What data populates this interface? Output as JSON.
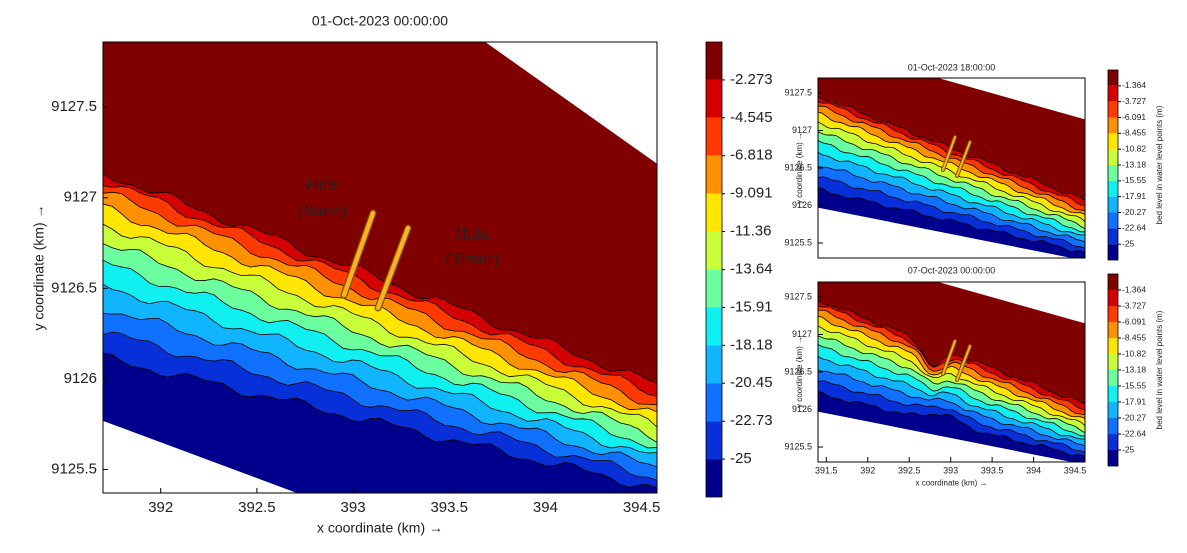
{
  "chart_data": [
    {
      "type": "contour",
      "title": "01-Oct-2023 00:00:00",
      "xlabel": "x coordinate (km) →",
      "ylabel": "y coordinate (km) →",
      "xlim": [
        391.7,
        394.58
      ],
      "ylim": [
        9125.37,
        9127.86
      ],
      "xticks": [
        392,
        392.5,
        393,
        393.5,
        394,
        394.5
      ],
      "yticks": [
        9125.5,
        9126,
        9126.5,
        9127,
        9127.5
      ],
      "annotations": [
        "Hilir",
        "(Barat)",
        "Hulu",
        "(Timur)"
      ],
      "colorbar": {
        "lim": [
          -27.27,
          0
        ],
        "ticks": [
          -2.273,
          -4.545,
          -6.818,
          -9.091,
          -11.36,
          -13.64,
          -15.91,
          -18.18,
          -20.45,
          -22.73,
          -25
        ],
        "colors": [
          "#800000",
          "#d40000",
          "#ff3a00",
          "#ff9000",
          "#ffe600",
          "#c8ff38",
          "#6cffa0",
          "#10f0f0",
          "#10b4ff",
          "#1070ff",
          "#0830d8",
          "#00008c"
        ]
      }
    },
    {
      "type": "contour",
      "title": "01-Oct-2023 18:00:00",
      "ylabel": "y coordinate (km) →",
      "xlim": [
        391.4,
        394.62
      ],
      "ylim": [
        9125.3,
        9127.7
      ],
      "yticks": [
        9125.5,
        9126,
        9126.5,
        9127,
        9127.5
      ],
      "colorbar": {
        "label": "bed level in water level points (m)",
        "lim": [
          -27.36,
          1
        ],
        "ticks": [
          -1.364,
          -3.727,
          -6.091,
          -8.455,
          -10.82,
          -13.18,
          -15.55,
          -17.91,
          -20.27,
          -22.64,
          -25
        ],
        "colors": [
          "#800000",
          "#d40000",
          "#ff3a00",
          "#ff9000",
          "#ffe600",
          "#c8ff38",
          "#6cffa0",
          "#10f0f0",
          "#10b4ff",
          "#1070ff",
          "#0830d8",
          "#00008c"
        ]
      }
    },
    {
      "type": "contour",
      "title": "07-Oct-2023 00:00:00",
      "xlabel": "x coordinate (km) →",
      "ylabel": "y coordinate (km) →",
      "xlim": [
        391.4,
        394.62
      ],
      "ylim": [
        9125.3,
        9127.7
      ],
      "xticks": [
        391.5,
        392,
        392.5,
        393,
        393.5,
        394,
        394.5
      ],
      "yticks": [
        9125.5,
        9126,
        9126.5,
        9127,
        9127.5
      ],
      "colorbar": {
        "label": "bed level in water level points (m)",
        "lim": [
          -27.36,
          1
        ],
        "ticks": [
          -1.364,
          -3.727,
          -6.091,
          -8.455,
          -10.82,
          -13.18,
          -15.55,
          -17.91,
          -20.27,
          -22.64,
          -25
        ],
        "colors": [
          "#800000",
          "#d40000",
          "#ff3a00",
          "#ff9000",
          "#ffe600",
          "#c8ff38",
          "#6cffa0",
          "#10f0f0",
          "#10b4ff",
          "#1070ff",
          "#0830d8",
          "#00008c"
        ]
      }
    }
  ]
}
